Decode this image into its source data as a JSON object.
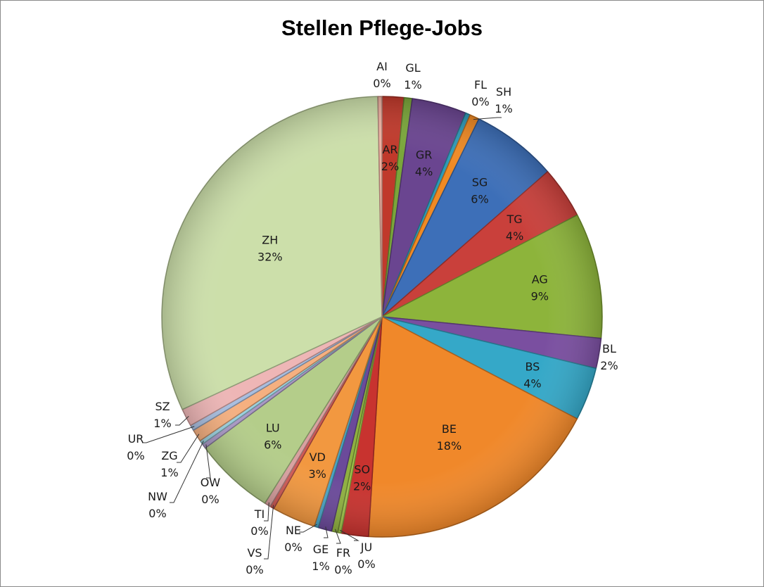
{
  "chart_data": {
    "type": "pie",
    "title": "Stellen Pflege-Jobs",
    "slices": [
      {
        "name": "AR",
        "pct_label": "2%",
        "value": 1.6,
        "color": "#c0392b"
      },
      {
        "name": "GL",
        "pct_label": "1%",
        "value": 0.6,
        "color": "#7aa63a"
      },
      {
        "name": "GR",
        "pct_label": "4%",
        "value": 4.0,
        "color": "#6a4590"
      },
      {
        "name": "FL",
        "pct_label": "0%",
        "value": 0.35,
        "color": "#2e9ab8"
      },
      {
        "name": "SH",
        "pct_label": "1%",
        "value": 0.7,
        "color": "#f08a24"
      },
      {
        "name": "SG",
        "pct_label": "6%",
        "value": 6.3,
        "color": "#3d6fb8"
      },
      {
        "name": "TG",
        "pct_label": "4%",
        "value": 3.8,
        "color": "#c9403b"
      },
      {
        "name": "AG",
        "pct_label": "9%",
        "value": 9.2,
        "color": "#8db43b"
      },
      {
        "name": "BL",
        "pct_label": "2%",
        "value": 2.2,
        "color": "#7a4fa0"
      },
      {
        "name": "BS",
        "pct_label": "4%",
        "value": 3.9,
        "color": "#35a8c8"
      },
      {
        "name": "BE",
        "pct_label": "18%",
        "value": 18.3,
        "color": "#f0882a"
      },
      {
        "name": "SO",
        "pct_label": "2%",
        "value": 2.0,
        "color": "#c8332f"
      },
      {
        "name": "JU",
        "pct_label": "0%",
        "value": 0.25,
        "color": "#9ec44a"
      },
      {
        "name": "FR",
        "pct_label": "0%",
        "value": 0.45,
        "color": "#8fb040"
      },
      {
        "name": "GE",
        "pct_label": "1%",
        "value": 1.0,
        "color": "#6b4a9a"
      },
      {
        "name": "NE",
        "pct_label": "0%",
        "value": 0.3,
        "color": "#4aa3c4"
      },
      {
        "name": "VD",
        "pct_label": "3%",
        "value": 3.2,
        "color": "#f29840"
      },
      {
        "name": "VS",
        "pct_label": "0%",
        "value": 0.3,
        "color": "#d05a55"
      },
      {
        "name": "TI",
        "pct_label": "0%",
        "value": 0.45,
        "color": "#d9a0a0"
      },
      {
        "name": "LU",
        "pct_label": "6%",
        "value": 5.9,
        "color": "#b4cd8a"
      },
      {
        "name": "OW",
        "pct_label": "0%",
        "value": 0.35,
        "color": "#a998c4"
      },
      {
        "name": "NW",
        "pct_label": "0%",
        "value": 0.3,
        "color": "#9ad0de"
      },
      {
        "name": "ZG",
        "pct_label": "1%",
        "value": 0.9,
        "color": "#f5b080"
      },
      {
        "name": "UR",
        "pct_label": "0%",
        "value": 0.4,
        "color": "#a8bedf"
      },
      {
        "name": "SZ",
        "pct_label": "1%",
        "value": 1.3,
        "color": "#eeb6b6"
      },
      {
        "name": "ZH",
        "pct_label": "32%",
        "value": 31.6,
        "color": "#ccdfaa"
      },
      {
        "name": "AI",
        "pct_label": "0%",
        "value": 0.3,
        "color": "#ecb0a0"
      }
    ],
    "legend": "none",
    "data_labels": "category name and percentage"
  }
}
